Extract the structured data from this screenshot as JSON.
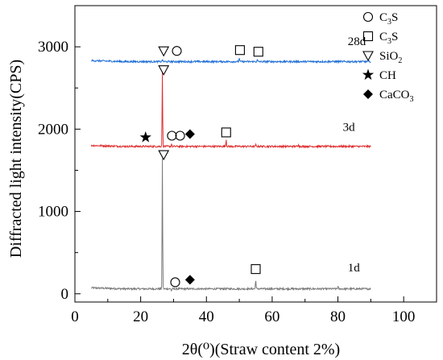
{
  "chart_data": {
    "type": "line",
    "title": "",
    "xlabel": "2θ(⁰)(Straw content 2%)",
    "ylabel": "Diffracted light intensity(CPS)",
    "xlim": [
      0,
      110
    ],
    "ylim": [
      -100,
      3500
    ],
    "x_ticks": [
      0,
      20,
      40,
      60,
      80,
      100
    ],
    "y_ticks": [
      0,
      1000,
      2000,
      3000
    ],
    "grid": false,
    "legend_position": "top-right",
    "series": [
      {
        "name": "1d",
        "color": "#7a7a7a",
        "baseline": 60,
        "peaks": [
          [
            26.6,
            1650
          ],
          [
            29.4,
            35
          ],
          [
            55.0,
            180
          ],
          [
            80.0,
            90
          ]
        ]
      },
      {
        "name": "3d",
        "color": "#e03030",
        "baseline": 1790,
        "peaks": [
          [
            26.6,
            2680
          ],
          [
            29.4,
            1825
          ],
          [
            46.0,
            1880
          ],
          [
            55.0,
            1810
          ],
          [
            68.0,
            1820
          ]
        ]
      },
      {
        "name": "28d",
        "color": "#1f6fd6",
        "baseline": 2820,
        "peaks": [
          [
            26.6,
            2850
          ],
          [
            50.0,
            2870
          ],
          [
            55.5,
            2840
          ]
        ]
      }
    ],
    "legend": [
      {
        "symbol": "circle",
        "label": "C",
        "sub": "3",
        "suffix": "S"
      },
      {
        "symbol": "square",
        "label": "C",
        "sub": "3",
        "suffix": "S"
      },
      {
        "symbol": "triangle",
        "label": "SiO",
        "sub": "2",
        "suffix": ""
      },
      {
        "symbol": "star",
        "label": "CH",
        "sub": "",
        "suffix": ""
      },
      {
        "symbol": "diamond",
        "label": "CaCO",
        "sub": "3",
        "suffix": ""
      }
    ],
    "annotations": [
      {
        "symbol": "triangle",
        "x": 27.0,
        "y": 2950
      },
      {
        "symbol": "circle",
        "x": 31.0,
        "y": 2950
      },
      {
        "symbol": "square",
        "x": 50.2,
        "y": 2960
      },
      {
        "symbol": "square",
        "x": 55.8,
        "y": 2940
      },
      {
        "symbol": "triangle",
        "x": 27.0,
        "y": 2720
      },
      {
        "symbol": "star",
        "x": 21.5,
        "y": 1900
      },
      {
        "symbol": "circle",
        "x": 29.5,
        "y": 1920
      },
      {
        "symbol": "circle",
        "x": 32.0,
        "y": 1920
      },
      {
        "symbol": "diamond",
        "x": 35.0,
        "y": 1940
      },
      {
        "symbol": "square",
        "x": 46.0,
        "y": 1960
      },
      {
        "symbol": "triangle",
        "x": 27.0,
        "y": 1690
      },
      {
        "symbol": "circle",
        "x": 30.5,
        "y": 140
      },
      {
        "symbol": "diamond",
        "x": 35.0,
        "y": 170
      },
      {
        "symbol": "square",
        "x": 55.0,
        "y": 300
      }
    ]
  }
}
